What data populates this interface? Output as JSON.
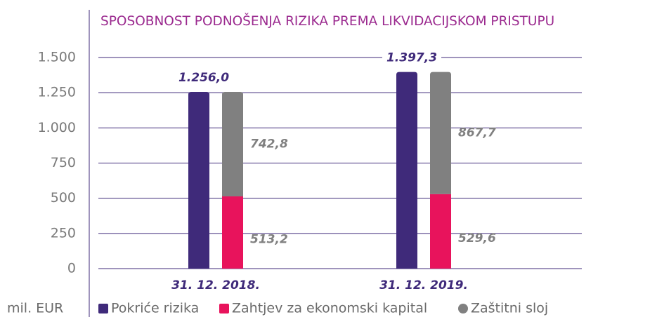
{
  "chart_data": {
    "type": "bar",
    "title": "SPOSOBNOST PODNOŠENJA RIZIKA PREMA LIKVIDACIJSKOM PRISTUPU",
    "y_unit": "mil. EUR",
    "categories": [
      "31. 12. 2018.",
      "31. 12. 2019."
    ],
    "series": [
      {
        "name": "Pokriće rizika",
        "color": "#3f2a7a",
        "values": [
          1256.0,
          1397.3
        ],
        "value_labels": [
          "1.256,0",
          "1.397,3"
        ]
      },
      {
        "name": "Zahtjev za ekonomski kapital",
        "color": "#e8135c",
        "values": [
          513.2,
          529.6
        ],
        "value_labels": [
          "513,2",
          "529,6"
        ]
      },
      {
        "name": "Zaštitni sloj",
        "color": "#808080",
        "values": [
          742.8,
          867.7
        ],
        "value_labels": [
          "742,8",
          "867,7"
        ]
      }
    ],
    "ylim": [
      0,
      1500
    ],
    "yticks": [
      0,
      250,
      500,
      750,
      {
        "value": 1000,
        "label": "1.000"
      },
      {
        "value": 1250,
        "label": "1.250"
      },
      {
        "value": 1500,
        "label": "1.500"
      }
    ],
    "grid": true
  }
}
